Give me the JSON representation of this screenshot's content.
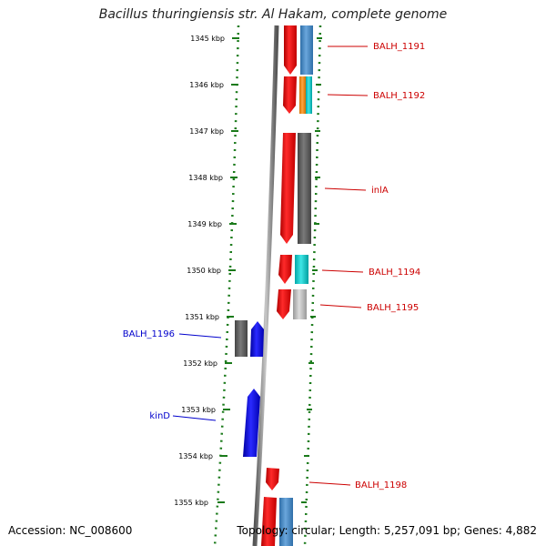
{
  "title": "Bacillus thuringiensis str. Al Hakam, complete genome",
  "footer": {
    "accession": "Accession: NC_008600",
    "summary": "Topology: circular; Length: 5,257,091 bp; Genes: 4,882"
  },
  "colors": {
    "tick": "#1a7a1a",
    "forward_label": "#cc0000",
    "reverse_label": "#0000cc",
    "backbone": "#888888"
  },
  "ticks": [
    "1345 kbp",
    "1346 kbp",
    "1347 kbp",
    "1348 kbp",
    "1349 kbp",
    "1350 kbp",
    "1351 kbp",
    "1352 kbp",
    "1353 kbp",
    "1354 kbp",
    "1355 kbp"
  ],
  "gene_labels": [
    {
      "text": "BALH_1191",
      "strand": "forward"
    },
    {
      "text": "BALH_1192",
      "strand": "forward"
    },
    {
      "text": "inlA",
      "strand": "forward"
    },
    {
      "text": "BALH_1194",
      "strand": "forward"
    },
    {
      "text": "BALH_1195",
      "strand": "forward"
    },
    {
      "text": "BALH_1196",
      "strand": "reverse"
    },
    {
      "text": "kinD",
      "strand": "reverse"
    },
    {
      "text": "BALH_1198",
      "strand": "forward"
    }
  ]
}
